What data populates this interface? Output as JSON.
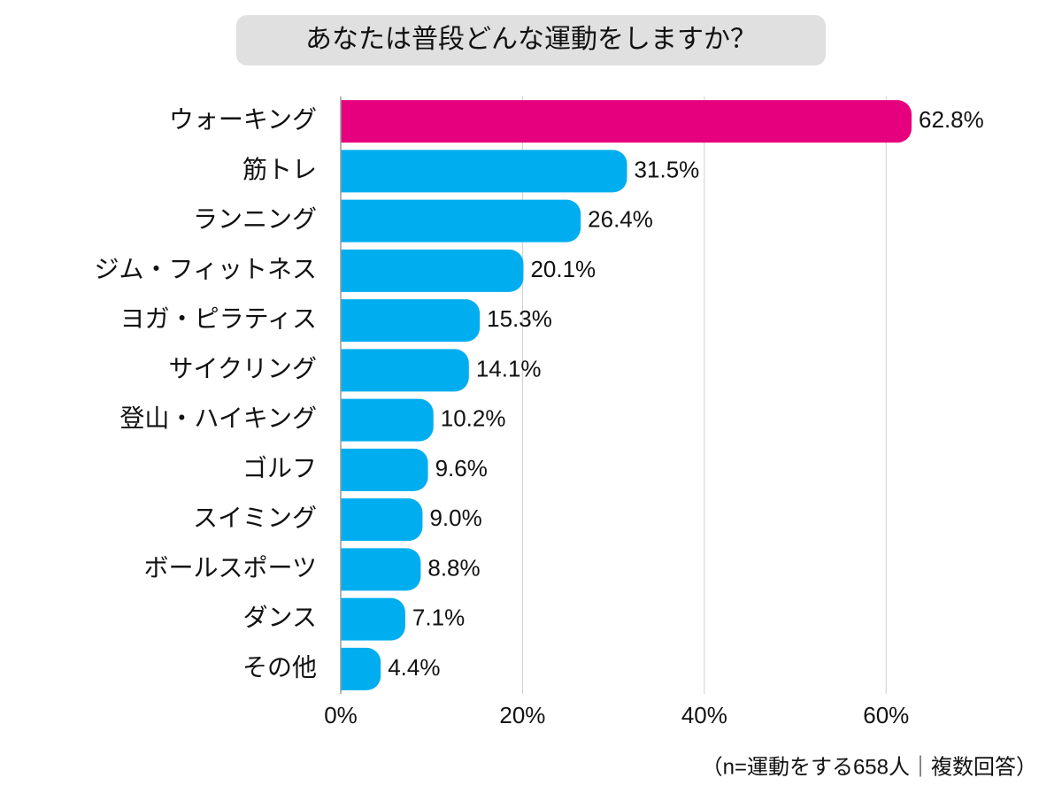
{
  "chart_data": {
    "type": "bar",
    "orientation": "horizontal",
    "title": "あなたは普段どんな運動をしますか？",
    "note": "（n=運動をする658人｜複数回答）",
    "categories": [
      "ウォーキング",
      "筋トレ",
      "ランニング",
      "ジム・フィットネス",
      "ヨガ・ピラティス",
      "サイクリング",
      "登山・ハイキング",
      "ゴルフ",
      "スイミング",
      "ボールスポーツ",
      "ダンス",
      "その他"
    ],
    "values": [
      62.8,
      31.5,
      26.4,
      20.1,
      15.3,
      14.1,
      10.2,
      9.6,
      9.0,
      8.8,
      7.1,
      4.4
    ],
    "value_labels": [
      "62.8%",
      "31.5%",
      "26.4%",
      "20.1%",
      "15.3%",
      "14.1%",
      "10.2%",
      "9.6%",
      "9.0%",
      "8.8%",
      "7.1%",
      "4.4%"
    ],
    "colors": [
      "#e6007e",
      "#00aeef",
      "#00aeef",
      "#00aeef",
      "#00aeef",
      "#00aeef",
      "#00aeef",
      "#00aeef",
      "#00aeef",
      "#00aeef",
      "#00aeef",
      "#00aeef"
    ],
    "xlim": [
      0,
      70
    ],
    "xticks": [
      {
        "value": 0,
        "label": "0%"
      },
      {
        "value": 20,
        "label": "20%"
      },
      {
        "value": 40,
        "label": "40%"
      },
      {
        "value": 60,
        "label": "60%"
      }
    ],
    "grid": true
  }
}
